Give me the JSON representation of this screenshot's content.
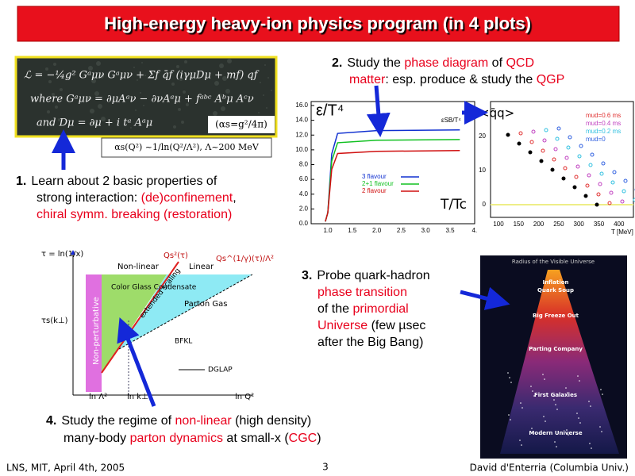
{
  "title": "High-energy heavy-ion physics program (in 4 plots)",
  "points": [
    {
      "number": "1.",
      "lines": [
        [
          {
            "text": "Learn about 2 basic properties of"
          }
        ],
        [
          {
            "text": "strong interaction: "
          },
          {
            "text": "(de)confinement",
            "color": "#e8001c"
          },
          {
            "text": ","
          }
        ],
        [
          {
            "text": "chiral symm. breaking (restoration)",
            "color": "#e8001c"
          }
        ]
      ]
    },
    {
      "number": "2.",
      "lines": [
        [
          {
            "text": "Study the "
          },
          {
            "text": "phase diagram",
            "color": "#e8001c"
          },
          {
            "text": " of "
          },
          {
            "text": "QCD",
            "color": "#e8001c"
          }
        ],
        [
          {
            "text": "matter",
            "color": "#e8001c"
          },
          {
            "text": ": esp. produce & study the "
          },
          {
            "text": "QGP",
            "color": "#e8001c"
          }
        ]
      ]
    },
    {
      "number": "3.",
      "lines": [
        [
          {
            "text": "Probe quark-hadron"
          }
        ],
        [
          {
            "text": "phase transition",
            "color": "#e8001c"
          }
        ],
        [
          {
            "text": "of the "
          },
          {
            "text": "primordial",
            "color": "#e8001c"
          }
        ],
        [
          {
            "text": "Universe",
            "color": "#e8001c"
          },
          {
            "text": " (few µsec"
          }
        ],
        [
          {
            "text": "after the Big Bang)"
          }
        ]
      ]
    },
    {
      "number": "4.",
      "lines": [
        [
          {
            "text": "Study the regime of "
          },
          {
            "text": "non-linear",
            "color": "#e8001c"
          },
          {
            "text": " (high density)"
          }
        ],
        [
          {
            "text": "many-body "
          },
          {
            "text": "parton dynamics",
            "color": "#e8001c"
          },
          {
            "text": " at small-x ("
          },
          {
            "text": "CGC",
            "color": "#e8001c"
          },
          {
            "text": ")"
          }
        ]
      ]
    }
  ],
  "lagrangian": {
    "lines": [
      "ℒ = −¼g² Gᵃμν Gᵃμν + Σf q̄f (iγμDμ + mf) qf",
      "where Gᵃμν = ∂μAᵃν − ∂νAᵃμ + fᵃᵇᶜ Aᵇμ Aᶜν",
      "and  Dμ = ∂μ + i tᵃ Aᵃμ"
    ],
    "coupling": "(αs=g²/4π)",
    "running": "αs(Q²) ~1/ln(Q²/Λ²), Λ~200 MeV"
  },
  "lattice": {
    "ylabel": "ε/T⁴",
    "xlabel": "T/Tc",
    "sb": "εSB/T⁴",
    "yticks": [
      "0.0",
      "2.0",
      "4.0",
      "6.0",
      "8.0",
      "10.0",
      "12.0",
      "14.0",
      "16.0"
    ],
    "xticks": [
      "1.0",
      "1.5",
      "2.0",
      "2.5",
      "3.0",
      "3.5",
      "4."
    ],
    "legend": [
      {
        "name": "3 flavour",
        "color": "#1030d0"
      },
      {
        "name": "2+1 flavour",
        "color": "#10c020"
      },
      {
        "name": "2 flavour",
        "color": "#d01010"
      }
    ]
  },
  "condensate": {
    "label": "<q̄q>",
    "xlabel": "T [MeV]",
    "yticks": [
      "0",
      "10",
      "20"
    ],
    "xticks": [
      "100",
      "150",
      "200",
      "250",
      "300",
      "350",
      "400"
    ],
    "legend": [
      "mud=0.6 ms",
      "mud=0.4 ms",
      "mud=0.2 ms",
      "mud=0"
    ]
  },
  "cgc": {
    "yaxis": "τ = ln(1/x)",
    "nonlinear": "Non-linear",
    "linear": "Linear",
    "qs": "Qs²(τ)",
    "qs2": "Qs^(1/γ)(τ)/Λ²",
    "glass": "Color Glass Condensate",
    "gas": "Parton Gas",
    "nonpert": "Non-perturbative",
    "scaling": "extended scaling",
    "bfkl": "BFKL",
    "dglap": "DGLAP",
    "taus": "τs(k⊥)",
    "x1": "ln Λ²",
    "x2": "ln k⊥²",
    "x3": "ln Q²"
  },
  "universe": {
    "header": "Radius of the Visible Universe",
    "stages": [
      "Inflation",
      "Quark Soup",
      "Big Freeze Out",
      "Parting Company",
      "First Galaxies",
      "Modern Universe"
    ]
  },
  "footer": {
    "left": "LNS, MIT, April 4th, 2005",
    "page": "3",
    "right": "David d'Enterria (Columbia Univ.)"
  }
}
